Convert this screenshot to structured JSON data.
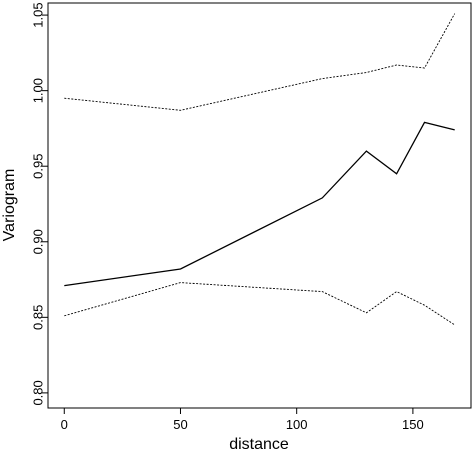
{
  "chart_data": {
    "type": "line",
    "xlabel": "distance",
    "ylabel": "Variogram",
    "xlim": [
      -7,
      175
    ],
    "ylim": [
      0.79,
      1.058
    ],
    "xticks": [
      0,
      50,
      100,
      150
    ],
    "yticks": [
      0.8,
      0.85,
      0.9,
      0.95,
      1.0,
      1.05
    ],
    "ytick_labels": [
      "0.80",
      "0.85",
      "0.90",
      "0.95",
      "1.00",
      "1.05"
    ],
    "grid": false,
    "series": [
      {
        "style": "solid",
        "x": [
          0,
          50,
          111,
          130,
          143,
          155,
          168
        ],
        "y": [
          0.871,
          0.882,
          0.929,
          0.96,
          0.945,
          0.979,
          0.974
        ]
      },
      {
        "style": "dashed",
        "x": [
          0,
          50,
          111,
          130,
          143,
          155,
          168
        ],
        "y": [
          0.995,
          0.987,
          1.008,
          1.012,
          1.017,
          1.015,
          1.051
        ]
      },
      {
        "style": "dashed",
        "x": [
          0,
          50,
          111,
          130,
          143,
          155,
          168
        ],
        "y": [
          0.851,
          0.873,
          0.867,
          0.853,
          0.867,
          0.858,
          0.845
        ]
      }
    ]
  }
}
